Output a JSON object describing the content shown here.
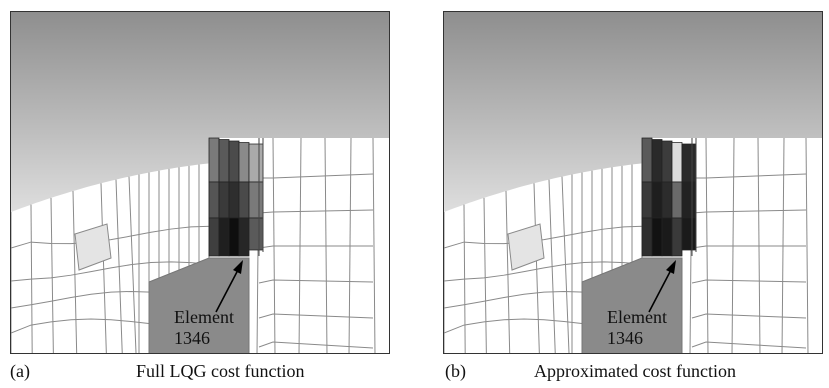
{
  "figure": {
    "panels": [
      {
        "id": "a",
        "label": "(a)",
        "caption": "Full LQG cost function",
        "element_label": "Element",
        "element_number": "1346",
        "shades": [
          [
            "#7a7a7a",
            "#5a5a5a",
            "#4b4b4b",
            "#8a8a8a",
            "#aaaaaa"
          ],
          [
            "#555555",
            "#3a3a3a",
            "#2e2e2e",
            "#4a4a4a",
            "#7a7a7a"
          ],
          [
            "#3f3f3f",
            "#1f1f1f",
            "#0e0e0e",
            "#262626",
            "#5a5a5a"
          ]
        ]
      },
      {
        "id": "b",
        "label": "(b)",
        "caption": "Approximated cost function",
        "element_label": "Element",
        "element_number": "1346",
        "shades": [
          [
            "#5a5a5a",
            "#2a2a2a",
            "#3c3c3c",
            "#dcdcdc",
            "#2a2a2a"
          ],
          [
            "#3a3a3a",
            "#1e1e1e",
            "#2c2c2c",
            "#6a6a6a",
            "#222222"
          ],
          [
            "#2e2e2e",
            "#121212",
            "#1a1a1a",
            "#3a3a3a",
            "#1a1a1a"
          ]
        ]
      }
    ],
    "colors": {
      "sky_top": "#8e8e8e",
      "sky_bottom": "#dedede",
      "mesh_line": "#8a8a8a",
      "light_element": "#e4e4e4",
      "gray_block": "#8a8a8a"
    }
  }
}
